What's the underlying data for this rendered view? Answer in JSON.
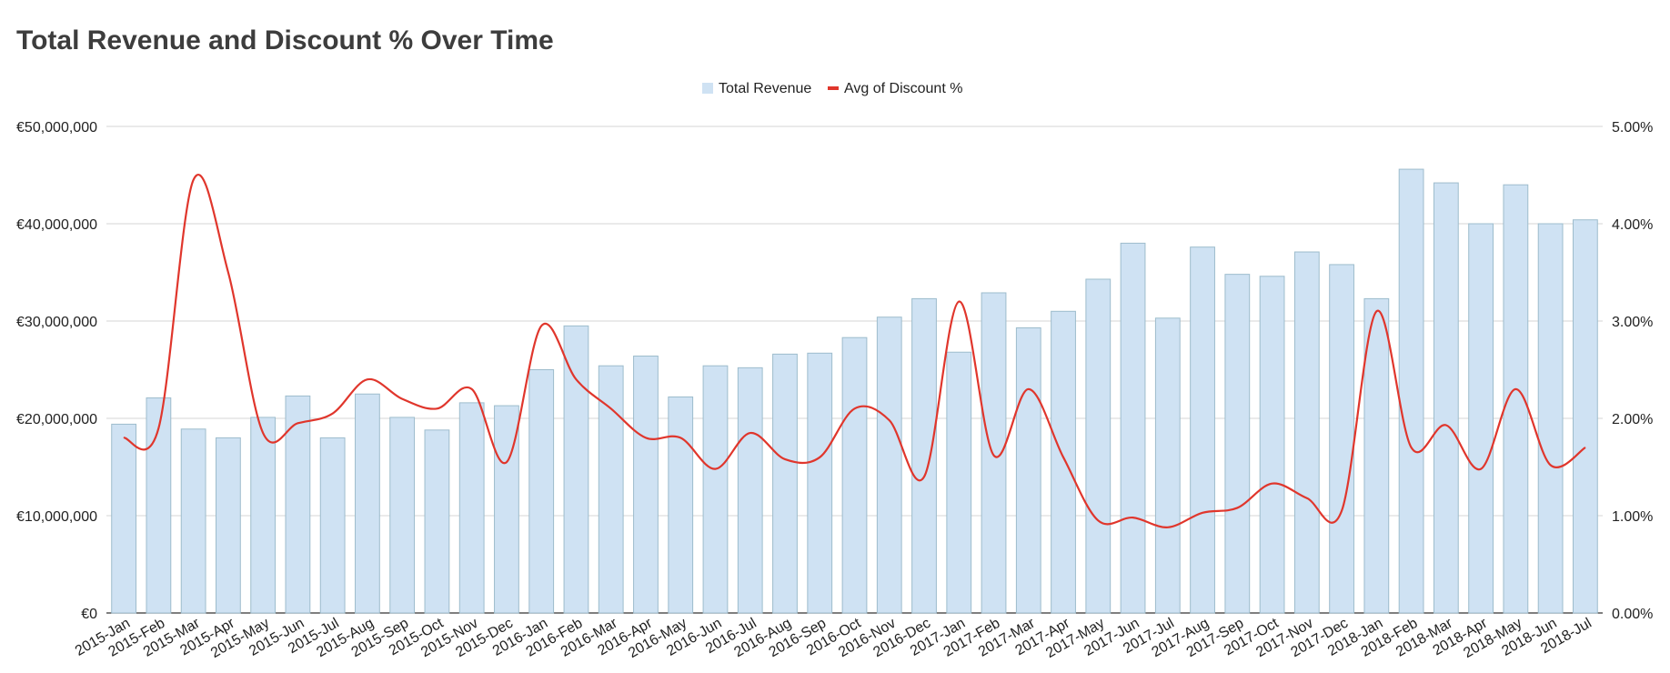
{
  "chart_data": {
    "type": "bar",
    "title": "Total Revenue and Discount % Over Time",
    "categories": [
      "2015-Jan",
      "2015-Feb",
      "2015-Mar",
      "2015-Apr",
      "2015-May",
      "2015-Jun",
      "2015-Jul",
      "2015-Aug",
      "2015-Sep",
      "2015-Oct",
      "2015-Nov",
      "2015-Dec",
      "2016-Jan",
      "2016-Feb",
      "2016-Mar",
      "2016-Apr",
      "2016-May",
      "2016-Jun",
      "2016-Jul",
      "2016-Aug",
      "2016-Sep",
      "2016-Oct",
      "2016-Nov",
      "2016-Dec",
      "2017-Jan",
      "2017-Feb",
      "2017-Mar",
      "2017-Apr",
      "2017-May",
      "2017-Jun",
      "2017-Jul",
      "2017-Aug",
      "2017-Sep",
      "2017-Oct",
      "2017-Nov",
      "2017-Dec",
      "2018-Jan",
      "2018-Feb",
      "2018-Mar",
      "2018-Apr",
      "2018-May",
      "2018-Jun",
      "2018-Jul"
    ],
    "series": [
      {
        "name": "Total Revenue",
        "type": "bar",
        "axis": "left",
        "color": "#cfe2f3",
        "stroke": "#9dbccc",
        "values": [
          19400000,
          22100000,
          18900000,
          18000000,
          20100000,
          22300000,
          18000000,
          22500000,
          20100000,
          18800000,
          21600000,
          21300000,
          25000000,
          29500000,
          25400000,
          26400000,
          22200000,
          25400000,
          25200000,
          26600000,
          26700000,
          28300000,
          30400000,
          32300000,
          26800000,
          32900000,
          29300000,
          31000000,
          34300000,
          38000000,
          30300000,
          37600000,
          34800000,
          34600000,
          37100000,
          35800000,
          32300000,
          45600000,
          44200000,
          40000000,
          44000000,
          40000000,
          40400000
        ]
      },
      {
        "name": "Avg of Discount %",
        "type": "line",
        "axis": "right",
        "color": "#e0362c",
        "values": [
          1.8,
          1.9,
          4.45,
          3.5,
          1.85,
          1.95,
          2.05,
          2.4,
          2.2,
          2.1,
          2.3,
          1.55,
          2.95,
          2.4,
          2.1,
          1.8,
          1.8,
          1.48,
          1.85,
          1.58,
          1.6,
          2.1,
          1.98,
          1.4,
          3.2,
          1.62,
          2.3,
          1.6,
          0.95,
          0.98,
          0.88,
          1.03,
          1.08,
          1.33,
          1.18,
          1.05,
          3.1,
          1.7,
          1.93,
          1.48,
          2.3,
          1.52,
          1.7
        ]
      }
    ],
    "y_left": {
      "ylim": [
        0,
        50000000
      ],
      "ticks": [
        "€0",
        "€10,000,000",
        "€20,000,000",
        "€30,000,000",
        "€40,000,000",
        "€50,000,000"
      ]
    },
    "y_right": {
      "ylim": [
        0,
        5
      ],
      "ticks": [
        "0.00%",
        "1.00%",
        "2.00%",
        "3.00%",
        "4.00%",
        "5.00%"
      ]
    },
    "grid": true,
    "legend": "top-center"
  },
  "legend": {
    "revenue_label": "Total Revenue",
    "discount_label": "Avg of Discount %"
  }
}
